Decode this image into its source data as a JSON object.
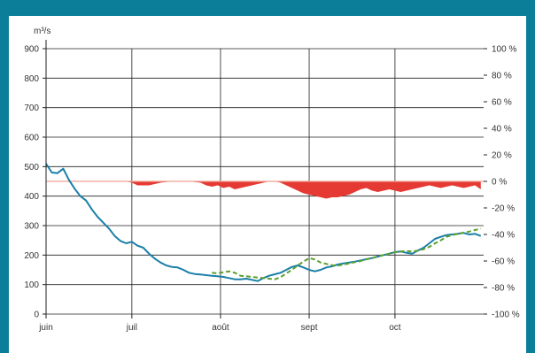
{
  "chart_data": {
    "type": "line",
    "ylabel_left": "m³/s",
    "ylim_left": [
      0,
      900
    ],
    "yticks_left": [
      "0",
      "100",
      "200",
      "300",
      "400",
      "500",
      "600",
      "700",
      "800",
      "900"
    ],
    "ylim_right": [
      -100,
      100
    ],
    "yticks_right": [
      "-100 %",
      "-80 %",
      "-60 %",
      "-40 %",
      "-20 %",
      "0 %",
      "20 %",
      "40 %",
      "60 %",
      "80 %",
      "100 %"
    ],
    "x_months": [
      "juin",
      "juil",
      "août",
      "sept",
      "oct"
    ],
    "x_days_total": 153,
    "grid": true,
    "series": [
      {
        "color": "#1a7fa8",
        "style": "solid",
        "axis": "left",
        "days": [
          0,
          2,
          4,
          6,
          8,
          10,
          12,
          14,
          16,
          18,
          20,
          22,
          24,
          26,
          28,
          30,
          32,
          34,
          36,
          38,
          40,
          42,
          44,
          46,
          48,
          50,
          52,
          54,
          56,
          58,
          60,
          62,
          64,
          66,
          68,
          70,
          72,
          74,
          76,
          78,
          80,
          82,
          84,
          86,
          88,
          90,
          92,
          94,
          96,
          98,
          100,
          102,
          104,
          106,
          108,
          110,
          112,
          114,
          116,
          118,
          120,
          122,
          124,
          126,
          128,
          130,
          132,
          134,
          136,
          138,
          140,
          142,
          144,
          146,
          148,
          150,
          152
        ],
        "values": [
          510,
          480,
          478,
          493,
          455,
          425,
          400,
          385,
          355,
          330,
          310,
          290,
          265,
          248,
          240,
          245,
          232,
          225,
          205,
          188,
          175,
          165,
          160,
          158,
          150,
          140,
          136,
          134,
          132,
          130,
          128,
          126,
          122,
          118,
          118,
          120,
          116,
          112,
          122,
          130,
          135,
          140,
          150,
          160,
          165,
          158,
          150,
          145,
          150,
          158,
          162,
          168,
          172,
          175,
          178,
          182,
          186,
          190,
          195,
          200,
          205,
          210,
          212,
          208,
          205,
          215,
          225,
          240,
          255,
          262,
          268,
          270,
          272,
          275,
          270,
          272,
          265
        ]
      },
      {
        "color": "#5aa02c",
        "style": "dashed",
        "axis": "left",
        "days": [
          58,
          60,
          62,
          64,
          66,
          68,
          70,
          72,
          74,
          76,
          78,
          80,
          82,
          84,
          86,
          88,
          90,
          92,
          94,
          96,
          98,
          100,
          102,
          104,
          106,
          108,
          110,
          112,
          114,
          116,
          118,
          120,
          122,
          124,
          126,
          128,
          130,
          132,
          134,
          136,
          138,
          140,
          142,
          144,
          146,
          148,
          150,
          152
        ],
        "values": [
          140,
          138,
          142,
          145,
          140,
          130,
          128,
          126,
          124,
          122,
          120,
          118,
          125,
          138,
          150,
          165,
          178,
          190,
          185,
          175,
          170,
          166,
          164,
          168,
          172,
          176,
          180,
          186,
          190,
          195,
          200,
          205,
          210,
          212,
          214,
          212,
          215,
          220,
          228,
          240,
          250,
          262,
          268,
          272,
          276,
          280,
          285,
          290
        ]
      }
    ],
    "deviation": {
      "color": "#e53a33",
      "axis": "right",
      "days": [
        0,
        10,
        20,
        28,
        30,
        31,
        32,
        34,
        36,
        40,
        44,
        50,
        54,
        56,
        58,
        60,
        62,
        64,
        66,
        68,
        70,
        72,
        74,
        76,
        78,
        80,
        82,
        84,
        86,
        88,
        90,
        92,
        94,
        96,
        98,
        100,
        102,
        104,
        106,
        108,
        110,
        112,
        114,
        116,
        118,
        120,
        122,
        124,
        126,
        128,
        130,
        132,
        134,
        136,
        138,
        140,
        142,
        144,
        146,
        148,
        150,
        152
      ],
      "values": [
        0,
        0,
        0,
        0,
        -1,
        -2,
        -3,
        -3,
        -3,
        -1,
        0,
        0,
        -1,
        -3,
        -4,
        -3,
        -5,
        -4,
        -6,
        -5,
        -4,
        -3,
        -2,
        -1,
        0,
        0,
        -1,
        -3,
        -5,
        -7,
        -9,
        -10,
        -11,
        -12,
        -13,
        -12,
        -12,
        -11,
        -10,
        -8,
        -6,
        -5,
        -7,
        -8,
        -7,
        -6,
        -7,
        -8,
        -7,
        -6,
        -5,
        -4,
        -3,
        -4,
        -5,
        -4,
        -3,
        -4,
        -5,
        -4,
        -3,
        -6
      ]
    },
    "zero_line_color": "#f0a090"
  }
}
